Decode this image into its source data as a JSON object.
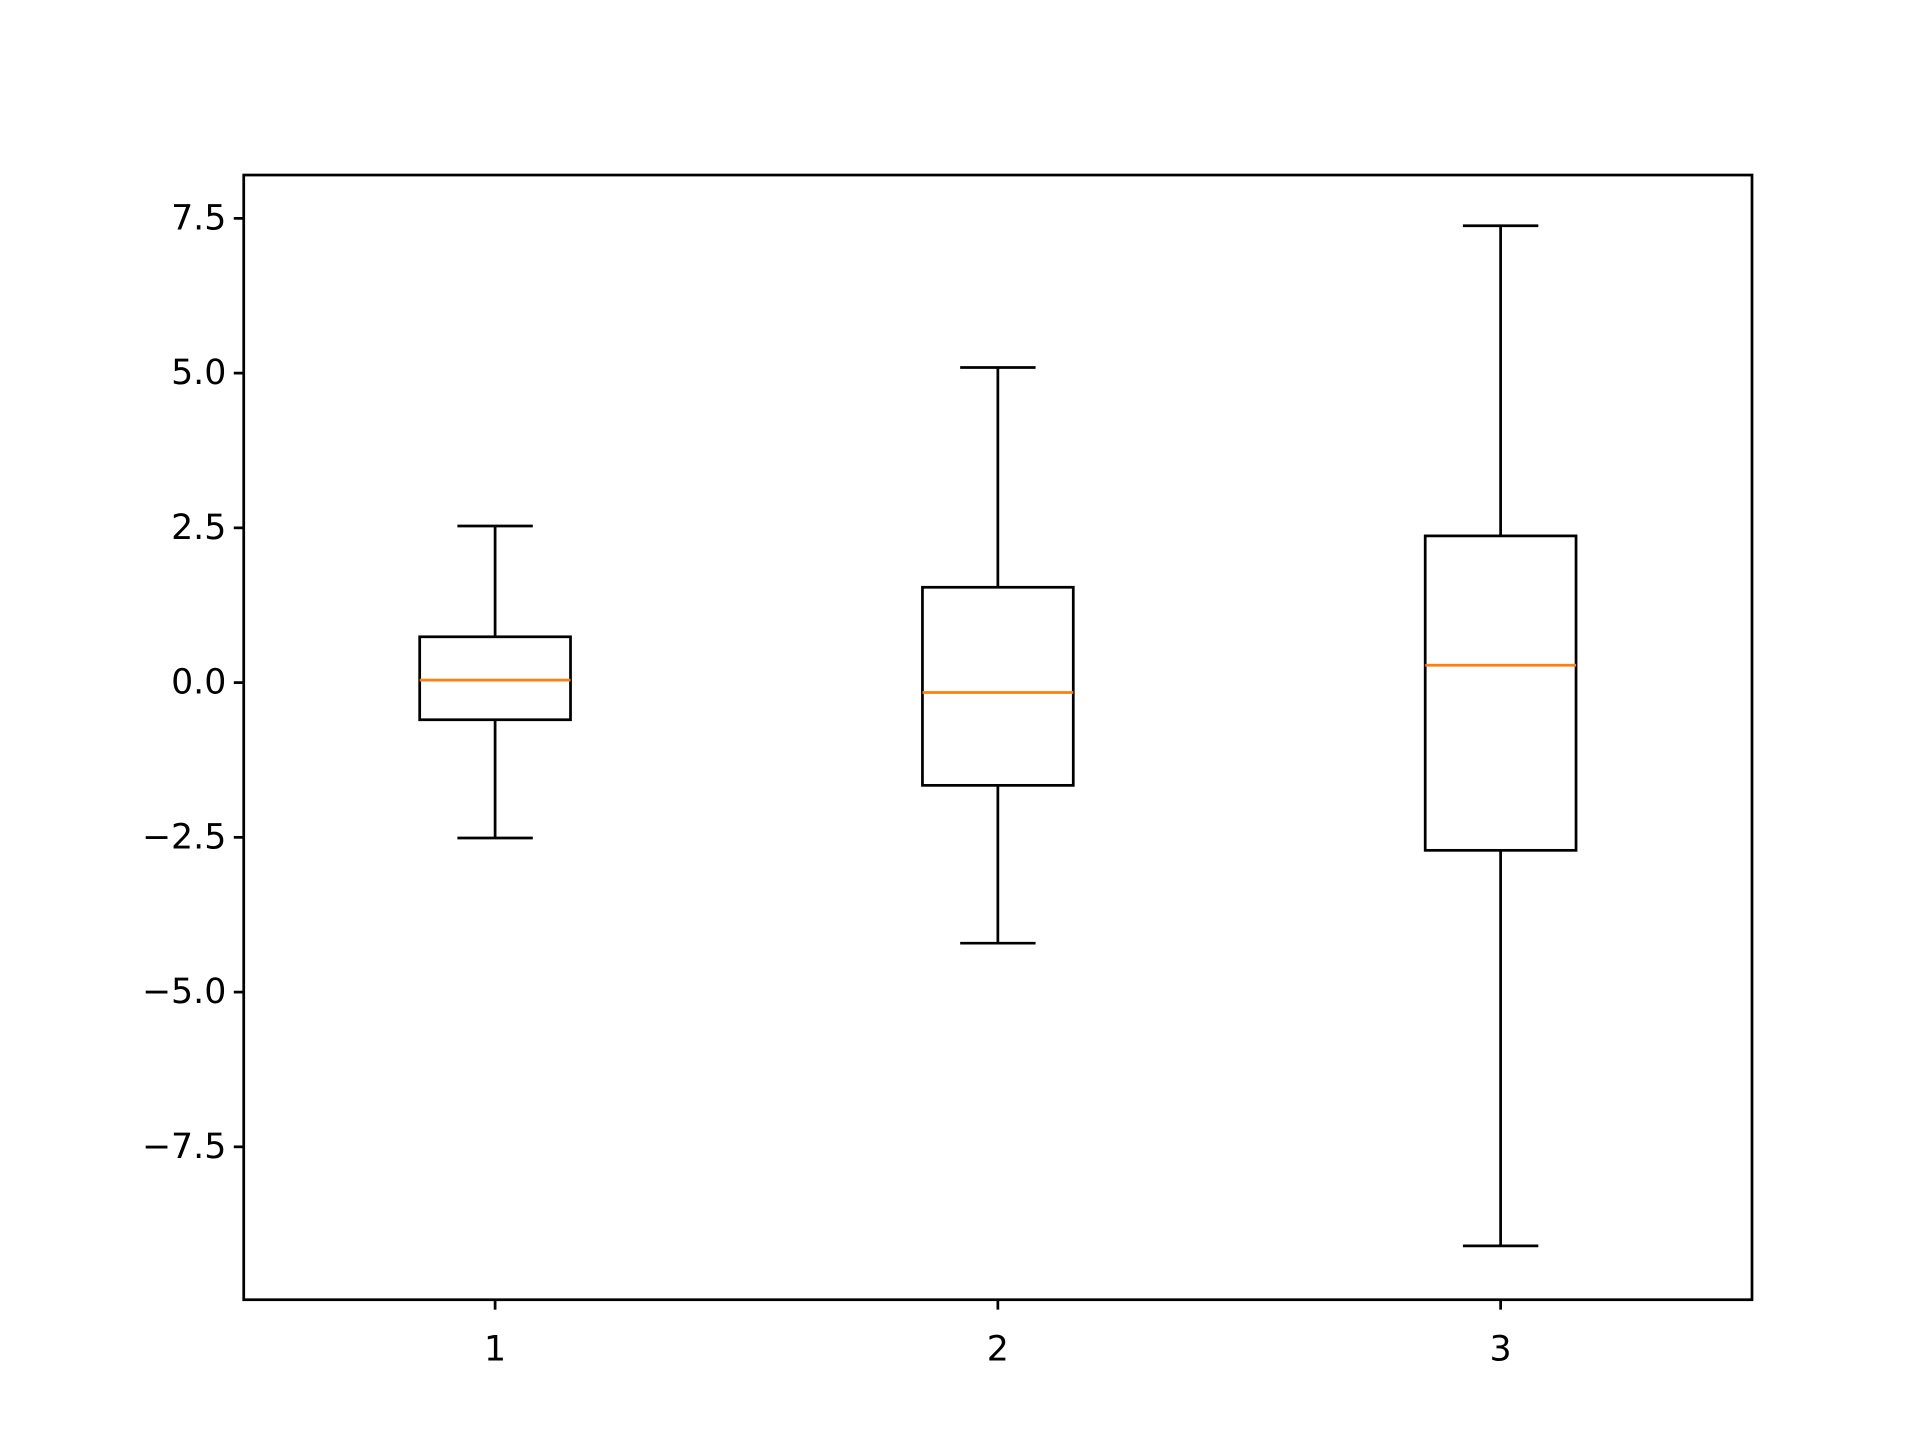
{
  "chart_data": {
    "type": "box",
    "categories": [
      "1",
      "2",
      "3"
    ],
    "stats": [
      {
        "whisker_low": -2.51,
        "q1": -0.6,
        "median": 0.04,
        "q3": 0.74,
        "whisker_high": 2.53
      },
      {
        "whisker_low": -4.21,
        "q1": -1.66,
        "median": -0.16,
        "q3": 1.54,
        "whisker_high": 5.09
      },
      {
        "whisker_low": -9.1,
        "q1": -2.71,
        "median": 0.28,
        "q3": 2.37,
        "whisker_high": 7.38
      }
    ],
    "box_color": "#000000",
    "median_color": "#ff7f0e",
    "xlim": [
      0.5,
      3.5
    ],
    "ylim": [
      -9.97,
      8.2
    ],
    "yticks": [
      {
        "value": -7.5,
        "label": "−7.5"
      },
      {
        "value": -5,
        "label": "−5.0"
      },
      {
        "value": -2.5,
        "label": "−2.5"
      },
      {
        "value": 0,
        "label": "0.0"
      },
      2.5,
      {
        "value": 5,
        "label": "5.0"
      },
      7.5
    ],
    "grid": false
  }
}
